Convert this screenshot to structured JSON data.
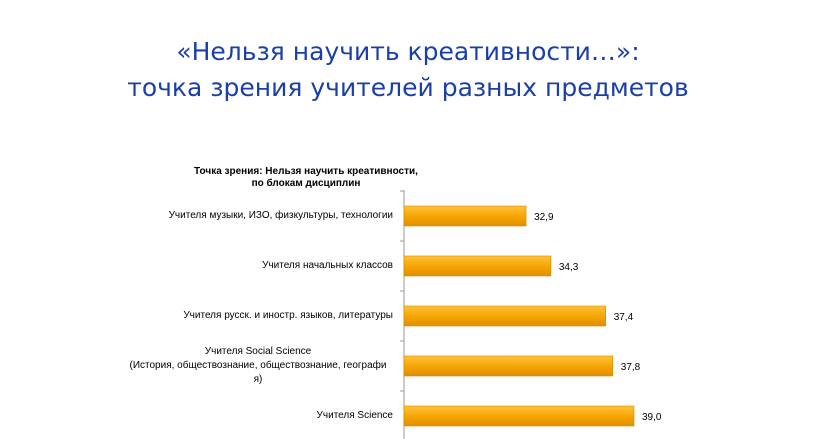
{
  "slide": {
    "title_line1": "«Нельзя научить креативности…»:",
    "title_line2": "точка зрения учителей разных предметов"
  },
  "colors": {
    "title": "#1a3fa8",
    "bar": "#f5a300",
    "bar_edge": "#d98a00",
    "axis": "#9a9a9a"
  },
  "chart_data": {
    "type": "bar",
    "orientation": "horizontal",
    "title_line1": "Точка зрения: Нельзя научить креативности,",
    "title_line2": "по блокам дисциплин",
    "categories": [
      "Учителя музыки, ИЗО, физкультуры, технологии",
      "Учителя начальных классов",
      "Учителя русск. и иностр. языков, литературы",
      "Учителя Social Science (История, обществознание, обществознание, географи я)",
      "Учителя Science"
    ],
    "category_lines": [
      [
        "Учителя музыки, ИЗО, физкультуры, технологии"
      ],
      [
        "Учителя начальных классов"
      ],
      [
        "Учителя русск. и иностр. языков, литературы"
      ],
      [
        "Учителя Social Science",
        "(История, обществознание, обществознание, географи",
        "я)"
      ],
      [
        "Учителя Science"
      ]
    ],
    "values": [
      32.9,
      34.3,
      37.4,
      37.8,
      39.0
    ],
    "value_labels": [
      "32,9",
      "34,3",
      "37,4",
      "37,8",
      "39,0"
    ],
    "xlim": [
      0,
      39
    ],
    "xlabel": "",
    "ylabel": "",
    "grid": false,
    "legend": "none"
  }
}
